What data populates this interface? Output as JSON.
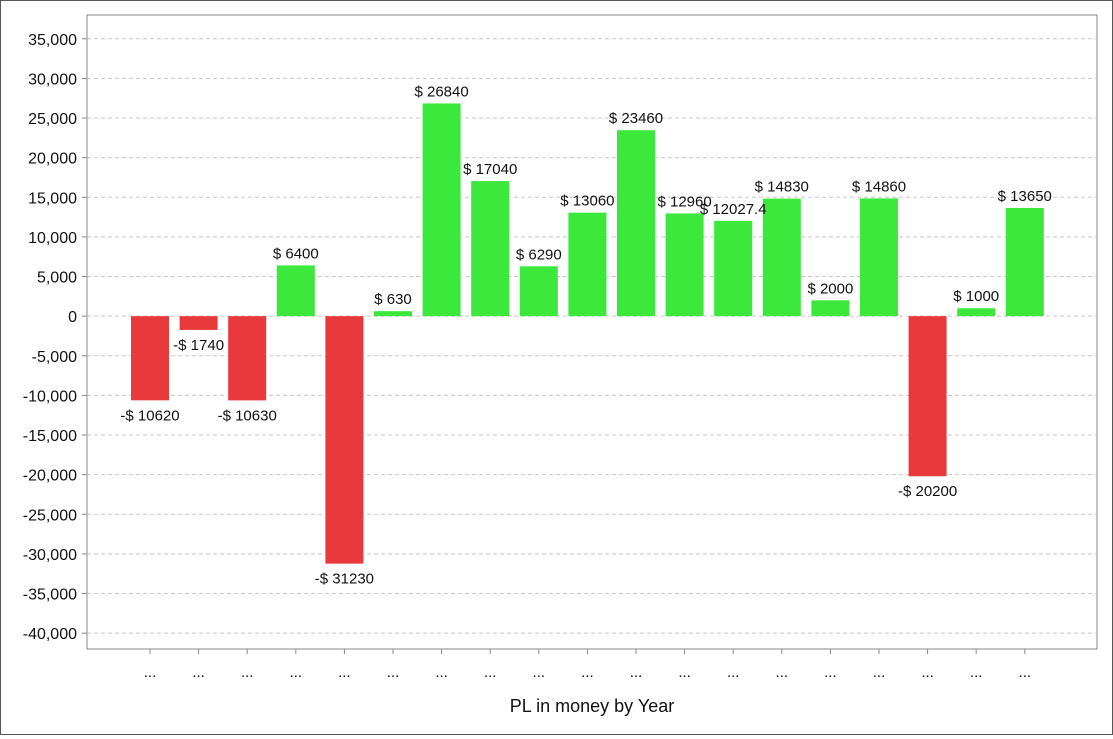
{
  "chart_data": {
    "type": "bar",
    "xlabel": "PL in money by Year",
    "ylabel": "",
    "ylim": [
      -42000,
      38000
    ],
    "yticks": [
      35000,
      30000,
      25000,
      20000,
      15000,
      10000,
      5000,
      0,
      -5000,
      -10000,
      -15000,
      -20000,
      -25000,
      -30000,
      -35000,
      -40000
    ],
    "ytick_labels": [
      "35,000",
      "30,000",
      "25,000",
      "20,000",
      "15,000",
      "10,000",
      "5,000",
      "0",
      "-5,000",
      "-10,000",
      "-15,000",
      "-20,000",
      "-25,000",
      "-30,000",
      "-35,000",
      "-40,000"
    ],
    "grid": true,
    "categories": [
      "...",
      "...",
      "...",
      "...",
      "...",
      "...",
      "...",
      "...",
      "...",
      "...",
      "...",
      "...",
      "...",
      "...",
      "...",
      "...",
      "...",
      "...",
      "..."
    ],
    "values": [
      -10620,
      -1740,
      -10630,
      6400,
      -31230,
      630,
      26840,
      17040,
      6290,
      13060,
      23460,
      12960,
      12027.4,
      14830,
      2000,
      14860,
      -20200,
      1000,
      13650
    ],
    "data_labels": [
      "-$ 10620",
      "-$ 1740",
      "-$ 10630",
      "$ 6400",
      "-$ 31230",
      "$ 630",
      "$ 26840",
      "$ 17040",
      "$ 6290",
      "$ 13060",
      "$ 23460",
      "$ 12960",
      "$ 12027.4",
      "$ 14830",
      "$ 2000",
      "$ 14860",
      "-$ 20200",
      "$ 1000",
      "$ 13650"
    ],
    "colors": {
      "positive": "#3ce83c",
      "negative": "#e8393c",
      "grid": "#c8c8c8",
      "axis": "#888888"
    }
  }
}
